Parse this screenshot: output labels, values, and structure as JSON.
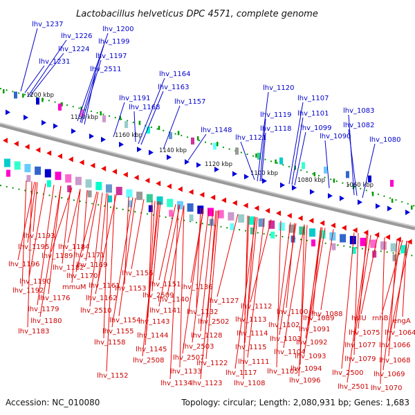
{
  "title": "Lactobacillus helveticus DPC 4571, complete genome",
  "footer": {
    "accession": "Accession: NC_010080",
    "summary": "Topology: circular; Length: 2,080,931 bp; Genes: 1,683"
  },
  "scale_labels": [
    "1200 kbp",
    "1180 kbp",
    "1160 kbp",
    "1140 kbp",
    "1120 kbp",
    "1100 kbp",
    "1080 kbp",
    "1060 kbp"
  ],
  "top_labels": [
    "lhv_1237",
    "lhv_1226",
    "lhv_1224",
    "lhv_1231",
    "lhv_1200",
    "lhv_1199",
    "lhv_1197",
    "lhv_2511",
    "lhv_1164",
    "lhv_1163",
    "lhv_1191",
    "lhv_1168",
    "lhv_1157",
    "lhv_1148",
    "lhv_1120",
    "lhv_1107",
    "lhv_1119",
    "lhv_1101",
    "lhv_1118",
    "lhv_1099",
    "lhv_1121",
    "lhv_1090",
    "lhv_1083",
    "lhv_1082",
    "lhv_1080"
  ],
  "bottom_labels": [
    "lhv_1193",
    "lhv_1195",
    "lhv_1184",
    "lhv_1196",
    "lhv_1189",
    "lhv_1171",
    "lhv_1182",
    "lhv_1169",
    "lhv_1190",
    "lhv_1170",
    "lhv_1192",
    "mmuM",
    "lhv_1176",
    "lhv_1179",
    "lhv_1180",
    "lhv_1183",
    "lhv_1161",
    "lhv_1156",
    "lhv_1151",
    "lhv_1162",
    "lhv_1153",
    "lhv_2509",
    "lhv_2510",
    "lhv_1154",
    "lhv_1155",
    "lhv_1158",
    "lhv_1152",
    "lhv_1136",
    "lhv_1140",
    "lhv_1141",
    "lhv_1143",
    "lhv_1144",
    "lhv_1145",
    "lhv_2508",
    "lhv_1127",
    "lhv_1132",
    "lhv_2502",
    "lhv_1128",
    "lhv_2503",
    "lhv_2507",
    "lhv_1133",
    "lhv_1134",
    "lhv_1122",
    "lhv_1123",
    "lhv_1112",
    "lhv_1113",
    "lhv_1114",
    "lhv_1115",
    "lhv_1111",
    "lhv_1117",
    "lhv_1108",
    "lhv_1100",
    "lhv_1102",
    "lhv_1103",
    "lhv_1104",
    "lhv_1105",
    "lhv_1089",
    "lhv_1091",
    "lhv_1092",
    "lhv_1093",
    "lhv_1094",
    "lhv_1096",
    "lhv_1088",
    "hslU",
    "rnhB",
    "engA",
    "lhv_1075",
    "lhv_1064",
    "lhv_1077",
    "lhv_1066",
    "lhv_1079",
    "lhv_1068",
    "lhv_2500",
    "lhv_1069",
    "lhv_2501",
    "lhv_1070"
  ],
  "colors": {
    "forward_genes": "#0000dd",
    "reverse_genes": "#ee0000",
    "backbone": "#888888",
    "scale_ticks": "#009900"
  }
}
